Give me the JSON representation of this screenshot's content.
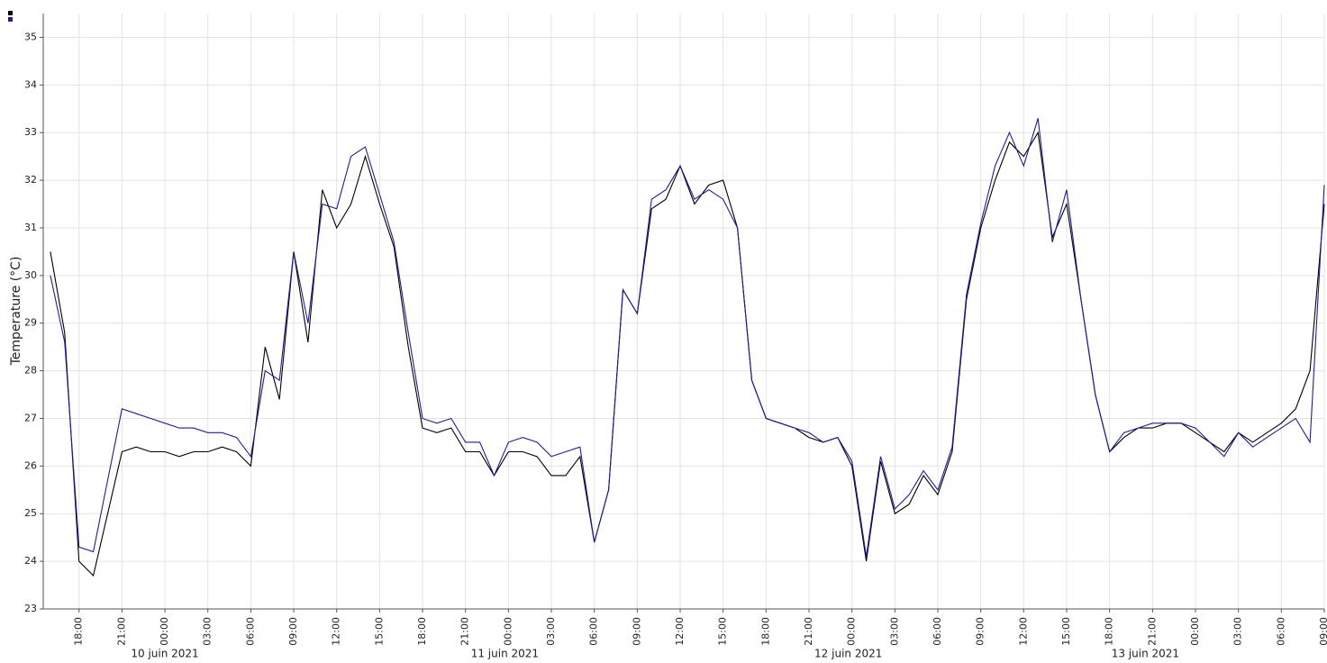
{
  "chart_data": {
    "type": "line",
    "y_label": "Temperature (°C)",
    "x": [
      "2021-06-09T16:00",
      "2021-06-09T17:00",
      "2021-06-09T18:00",
      "2021-06-09T19:00",
      "2021-06-09T20:00",
      "2021-06-09T21:00",
      "2021-06-09T22:00",
      "2021-06-09T23:00",
      "2021-06-10T00:00",
      "2021-06-10T01:00",
      "2021-06-10T02:00",
      "2021-06-10T03:00",
      "2021-06-10T04:00",
      "2021-06-10T05:00",
      "2021-06-10T06:00",
      "2021-06-10T07:00",
      "2021-06-10T08:00",
      "2021-06-10T09:00",
      "2021-06-10T10:00",
      "2021-06-10T11:00",
      "2021-06-10T12:00",
      "2021-06-10T13:00",
      "2021-06-10T14:00",
      "2021-06-10T15:00",
      "2021-06-10T16:00",
      "2021-06-10T17:00",
      "2021-06-10T18:00",
      "2021-06-10T19:00",
      "2021-06-10T20:00",
      "2021-06-10T21:00",
      "2021-06-10T22:00",
      "2021-06-10T23:00",
      "2021-06-11T00:00",
      "2021-06-11T01:00",
      "2021-06-11T02:00",
      "2021-06-11T03:00",
      "2021-06-11T04:00",
      "2021-06-11T05:00",
      "2021-06-11T06:00",
      "2021-06-11T07:00",
      "2021-06-11T08:00",
      "2021-06-11T09:00",
      "2021-06-11T10:00",
      "2021-06-11T11:00",
      "2021-06-11T12:00",
      "2021-06-11T13:00",
      "2021-06-11T14:00",
      "2021-06-11T15:00",
      "2021-06-11T16:00",
      "2021-06-11T17:00",
      "2021-06-11T18:00",
      "2021-06-11T19:00",
      "2021-06-11T20:00",
      "2021-06-11T21:00",
      "2021-06-11T22:00",
      "2021-06-11T23:00",
      "2021-06-12T00:00",
      "2021-06-12T01:00",
      "2021-06-12T02:00",
      "2021-06-12T03:00",
      "2021-06-12T04:00",
      "2021-06-12T05:00",
      "2021-06-12T06:00",
      "2021-06-12T07:00",
      "2021-06-12T08:00",
      "2021-06-12T09:00",
      "2021-06-12T10:00",
      "2021-06-12T11:00",
      "2021-06-12T12:00",
      "2021-06-12T13:00",
      "2021-06-12T14:00",
      "2021-06-12T15:00",
      "2021-06-12T16:00",
      "2021-06-12T17:00",
      "2021-06-12T18:00",
      "2021-06-12T19:00",
      "2021-06-12T20:00",
      "2021-06-12T21:00",
      "2021-06-12T22:00",
      "2021-06-12T23:00",
      "2021-06-13T00:00",
      "2021-06-13T01:00",
      "2021-06-13T02:00",
      "2021-06-13T03:00",
      "2021-06-13T04:00",
      "2021-06-13T05:00",
      "2021-06-13T06:00",
      "2021-06-13T07:00",
      "2021-06-13T08:00",
      "2021-06-13T09:00"
    ],
    "series": [
      {
        "color": "#000000",
        "values": [
          30.5,
          28.8,
          24.0,
          23.7,
          25.0,
          26.3,
          26.4,
          26.3,
          26.3,
          26.2,
          26.3,
          26.3,
          26.4,
          26.3,
          26.0,
          28.5,
          27.4,
          30.5,
          28.6,
          31.8,
          31.0,
          31.5,
          32.5,
          31.5,
          30.6,
          28.5,
          26.8,
          26.7,
          26.8,
          26.3,
          26.3,
          25.8,
          26.3,
          26.3,
          26.2,
          25.8,
          25.8,
          26.2,
          24.4,
          25.5,
          29.7,
          29.2,
          31.4,
          31.6,
          32.3,
          31.5,
          31.9,
          32.0,
          31.0,
          27.8,
          27.0,
          26.9,
          26.8,
          26.6,
          26.5,
          26.6,
          26.0,
          24.0,
          26.1,
          25.0,
          25.2,
          25.8,
          25.4,
          26.3,
          29.5,
          31.0,
          32.0,
          32.8,
          32.5,
          33.0,
          30.8,
          31.5,
          29.5,
          27.5,
          26.3,
          26.6,
          26.8,
          26.8,
          26.9,
          26.9,
          26.7,
          26.5,
          26.3,
          26.7,
          26.5,
          26.7,
          26.9,
          27.2,
          28.0,
          31.5
        ]
      },
      {
        "color": "#1f1f8f",
        "values": [
          30.0,
          28.6,
          24.3,
          24.2,
          25.7,
          27.2,
          27.1,
          27.0,
          26.9,
          26.8,
          26.8,
          26.7,
          26.7,
          26.6,
          26.2,
          28.0,
          27.8,
          30.5,
          29.0,
          31.5,
          31.4,
          32.5,
          32.7,
          31.7,
          30.7,
          28.8,
          27.0,
          26.9,
          27.0,
          26.5,
          26.5,
          25.8,
          26.5,
          26.6,
          26.5,
          26.2,
          26.3,
          26.4,
          24.4,
          25.5,
          29.7,
          29.2,
          31.6,
          31.8,
          32.3,
          31.6,
          31.8,
          31.6,
          31.0,
          27.8,
          27.0,
          26.9,
          26.8,
          26.7,
          26.5,
          26.6,
          26.1,
          24.1,
          26.2,
          25.1,
          25.4,
          25.9,
          25.5,
          26.4,
          29.6,
          31.1,
          32.3,
          33.0,
          32.3,
          33.3,
          30.7,
          31.8,
          29.5,
          27.5,
          26.3,
          26.7,
          26.8,
          26.9,
          26.9,
          26.9,
          26.8,
          26.5,
          26.2,
          26.7,
          26.4,
          26.6,
          26.8,
          27.0,
          26.5,
          31.9
        ]
      }
    ],
    "xlim": [
      "2021-06-09T15:30",
      "2021-06-13T09:00"
    ],
    "xticks": [
      {
        "value": "2021-06-09T18:00",
        "label": "18:00"
      },
      {
        "value": "2021-06-09T21:00",
        "label": "21:00"
      },
      {
        "value": "2021-06-10T00:00",
        "label": "00:00"
      },
      {
        "value": "2021-06-10T03:00",
        "label": "03:00"
      },
      {
        "value": "2021-06-10T06:00",
        "label": "06:00"
      },
      {
        "value": "2021-06-10T09:00",
        "label": "09:00"
      },
      {
        "value": "2021-06-10T12:00",
        "label": "12:00"
      },
      {
        "value": "2021-06-10T15:00",
        "label": "15:00"
      },
      {
        "value": "2021-06-10T18:00",
        "label": "18:00"
      },
      {
        "value": "2021-06-10T21:00",
        "label": "21:00"
      },
      {
        "value": "2021-06-11T00:00",
        "label": "00:00"
      },
      {
        "value": "2021-06-11T03:00",
        "label": "03:00"
      },
      {
        "value": "2021-06-11T06:00",
        "label": "06:00"
      },
      {
        "value": "2021-06-11T09:00",
        "label": "09:00"
      },
      {
        "value": "2021-06-11T12:00",
        "label": "12:00"
      },
      {
        "value": "2021-06-11T15:00",
        "label": "15:00"
      },
      {
        "value": "2021-06-11T18:00",
        "label": "18:00"
      },
      {
        "value": "2021-06-11T21:00",
        "label": "21:00"
      },
      {
        "value": "2021-06-12T00:00",
        "label": "00:00"
      },
      {
        "value": "2021-06-12T03:00",
        "label": "03:00"
      },
      {
        "value": "2021-06-12T06:00",
        "label": "06:00"
      },
      {
        "value": "2021-06-12T09:00",
        "label": "09:00"
      },
      {
        "value": "2021-06-12T12:00",
        "label": "12:00"
      },
      {
        "value": "2021-06-12T15:00",
        "label": "15:00"
      },
      {
        "value": "2021-06-12T18:00",
        "label": "18:00"
      },
      {
        "value": "2021-06-12T21:00",
        "label": "21:00"
      },
      {
        "value": "2021-06-13T00:00",
        "label": "00:00"
      },
      {
        "value": "2021-06-13T03:00",
        "label": "03:00"
      },
      {
        "value": "2021-06-13T06:00",
        "label": "06:00"
      },
      {
        "value": "2021-06-13T09:00",
        "label": "09:00"
      }
    ],
    "date_labels": [
      {
        "value": "2021-06-10T00:00",
        "label": "10 juin 2021"
      },
      {
        "value": "2021-06-10T23:45",
        "label": "11 juin 2021"
      },
      {
        "value": "2021-06-11T23:45",
        "label": "12 juin 2021"
      },
      {
        "value": "2021-06-12T20:30",
        "label": "13 juin 2021"
      }
    ],
    "ylim": [
      23,
      35.5
    ],
    "yticks": [
      23,
      24,
      25,
      26,
      27,
      28,
      29,
      30,
      31,
      32,
      33,
      34,
      35
    ],
    "grid": true
  }
}
